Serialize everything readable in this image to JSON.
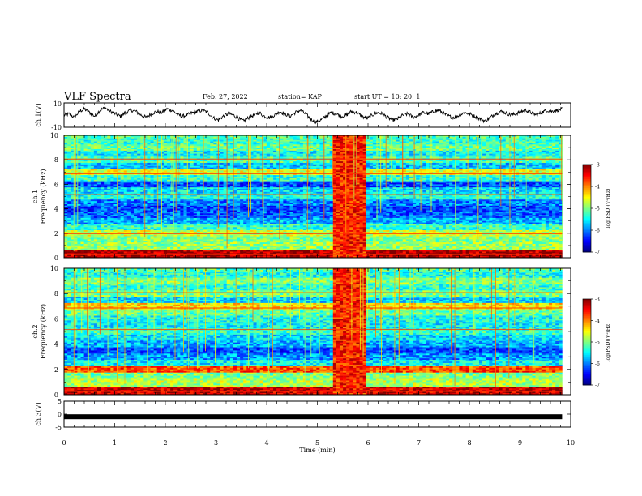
{
  "header": {
    "title": "VLF Spectra",
    "date": "Feb. 27, 2022",
    "station": "station= KAP",
    "start": "start  UT  =   10: 20: 1"
  },
  "chart_data": [
    {
      "type": "line",
      "panel": "ch1-waveform",
      "ylabel": "ch.1(V)",
      "ylim": [
        -10,
        10
      ],
      "yticks": [
        "10",
        "-10"
      ],
      "xlim": [
        0,
        10
      ],
      "trace_minutes": [
        0,
        9.83
      ],
      "series": [
        {
          "values": [
            0,
            1,
            -2,
            3,
            5,
            2,
            -1,
            4,
            6,
            3,
            1,
            -1,
            2,
            4,
            3,
            0,
            -2,
            1,
            3,
            2,
            5,
            4,
            1,
            -1,
            0,
            2,
            3,
            4,
            2,
            -2,
            -4,
            -1,
            1,
            0,
            -3,
            -5,
            -2,
            0,
            2,
            -1,
            -2,
            0,
            3,
            1,
            -1,
            2,
            4,
            1,
            -3,
            -6,
            -4,
            -1,
            2,
            1,
            -1,
            0,
            3,
            2,
            -1,
            -3,
            0,
            2,
            1,
            -2,
            -4,
            -3,
            0,
            1,
            -2,
            0,
            2,
            1,
            3,
            4,
            1,
            -1,
            -2,
            0,
            2,
            1,
            -1,
            -3,
            -5,
            -2,
            1,
            3,
            2,
            0,
            1,
            3,
            4,
            2,
            0,
            2,
            4,
            3,
            4,
            5
          ]
        }
      ]
    },
    {
      "type": "heatmap",
      "panel": "ch1-spectrogram",
      "ylabel": "ch.1\nFrequency (kHz)",
      "ylim": [
        0,
        10
      ],
      "yticks": [
        "0",
        "2",
        "4",
        "6",
        "8",
        "10"
      ],
      "xlim": [
        0,
        10
      ],
      "data_extent_minutes": [
        0,
        9.83
      ],
      "burst_minutes": [
        5.35,
        5.95
      ],
      "colorbar": {
        "label": "log(PSD)(V²/Hz)",
        "range": [
          -7,
          -3
        ],
        "ticks": [
          "-3",
          "-4",
          "-5",
          "-6",
          "-7"
        ]
      },
      "row_levels_kHz": [
        {
          "f": 0.3,
          "v": -3.2
        },
        {
          "f": 1.0,
          "v": -4.9
        },
        {
          "f": 1.5,
          "v": -5.0
        },
        {
          "f": 2.0,
          "v": -4.7
        },
        {
          "f": 2.5,
          "v": -5.3
        },
        {
          "f": 3.0,
          "v": -5.8
        },
        {
          "f": 3.5,
          "v": -6.1
        },
        {
          "f": 4.0,
          "v": -6.2
        },
        {
          "f": 4.5,
          "v": -6.0
        },
        {
          "f": 5.0,
          "v": -5.4
        },
        {
          "f": 5.5,
          "v": -5.6
        },
        {
          "f": 6.0,
          "v": -6.2
        },
        {
          "f": 6.5,
          "v": -5.3
        },
        {
          "f": 7.0,
          "v": -4.6
        },
        {
          "f": 7.5,
          "v": -5.7
        },
        {
          "f": 8.0,
          "v": -5.2
        },
        {
          "f": 8.5,
          "v": -5.5
        },
        {
          "f": 9.0,
          "v": -5.1
        },
        {
          "f": 9.5,
          "v": -5.3
        },
        {
          "f": 10.0,
          "v": -5.2
        }
      ]
    },
    {
      "type": "heatmap",
      "panel": "ch2-spectrogram",
      "ylabel": "ch.2\nFrequency (kHz)",
      "ylim": [
        0,
        10
      ],
      "yticks": [
        "0",
        "2",
        "4",
        "6",
        "8",
        "10"
      ],
      "xlim": [
        0,
        10
      ],
      "data_extent_minutes": [
        0,
        9.83
      ],
      "burst_minutes": [
        5.35,
        5.95
      ],
      "colorbar": {
        "label": "log(PSD)(V²/Hz)",
        "range": [
          -7,
          -3
        ],
        "ticks": [
          "-3",
          "-4",
          "-5",
          "-6",
          "-7"
        ]
      },
      "row_levels_kHz": [
        {
          "f": 0.2,
          "v": -3.3
        },
        {
          "f": 1.0,
          "v": -4.8
        },
        {
          "f": 1.5,
          "v": -5.0
        },
        {
          "f": 2.0,
          "v": -3.8
        },
        {
          "f": 2.5,
          "v": -5.5
        },
        {
          "f": 3.0,
          "v": -5.9
        },
        {
          "f": 3.5,
          "v": -6.2
        },
        {
          "f": 4.0,
          "v": -5.8
        },
        {
          "f": 4.5,
          "v": -5.6
        },
        {
          "f": 5.0,
          "v": -5.3
        },
        {
          "f": 5.5,
          "v": -5.5
        },
        {
          "f": 6.0,
          "v": -5.4
        },
        {
          "f": 6.5,
          "v": -5.1
        },
        {
          "f": 7.0,
          "v": -4.4
        },
        {
          "f": 7.5,
          "v": -5.6
        },
        {
          "f": 8.0,
          "v": -5.0
        },
        {
          "f": 8.5,
          "v": -5.3
        },
        {
          "f": 9.0,
          "v": -5.0
        },
        {
          "f": 9.5,
          "v": -5.4
        },
        {
          "f": 10.0,
          "v": -5.2
        }
      ]
    },
    {
      "type": "line",
      "panel": "ch3-trace",
      "ylabel": "ch.3(V)",
      "ylim": [
        -5,
        5
      ],
      "yticks": [
        "5",
        "0",
        "-5"
      ],
      "xlim": [
        0,
        10
      ],
      "xlabel": "Time  (min)",
      "xticks": [
        "0",
        "1",
        "2",
        "3",
        "4",
        "5",
        "6",
        "7",
        "8",
        "9",
        "10"
      ],
      "trace_minutes": [
        0,
        9.83
      ],
      "series": [
        {
          "values": [
            -1,
            -1
          ]
        }
      ]
    }
  ]
}
